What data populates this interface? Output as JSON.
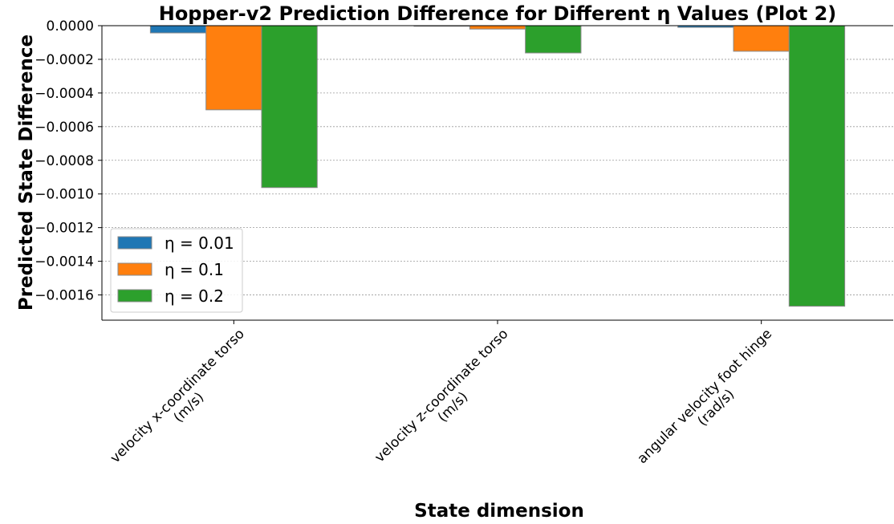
{
  "chart_data": {
    "type": "bar",
    "title": "Hopper-v2 Prediction Difference for Different η Values (Plot 2)",
    "x_label": "State dimension",
    "y_label": "Predicted State Difference",
    "categories": [
      "velocity x-coordinate torso\n(m/s)",
      "velocity z-coordinate torso\n(m/s)",
      "angular velocity foot hinge\n(rad/s)"
    ],
    "series": [
      {
        "name": "η = 0.01",
        "color": "#1f77b4",
        "values": [
          -4.3e-05,
          -3e-06,
          -1e-05
        ]
      },
      {
        "name": "η = 0.1",
        "color": "#ff7f0e",
        "values": [
          -0.0005,
          -2e-05,
          -0.000152
        ]
      },
      {
        "name": "η = 0.2",
        "color": "#2ca02c",
        "values": [
          -0.000962,
          -0.000162,
          -0.001667
        ]
      }
    ],
    "ylim": [
      -0.00175,
      0
    ],
    "yticks": [
      {
        "value": 0,
        "label": "0.0000"
      },
      {
        "value": -0.0002,
        "label": "−0.0002"
      },
      {
        "value": -0.0004,
        "label": "−0.0004"
      },
      {
        "value": -0.0006,
        "label": "−0.0006"
      },
      {
        "value": -0.0008,
        "label": "−0.0008"
      },
      {
        "value": -0.001,
        "label": "−0.0010"
      },
      {
        "value": -0.0012,
        "label": "−0.0012"
      },
      {
        "value": -0.0014,
        "label": "−0.0014"
      },
      {
        "value": -0.0016,
        "label": "−0.0016"
      }
    ],
    "grid": true,
    "legend": "lower left"
  }
}
